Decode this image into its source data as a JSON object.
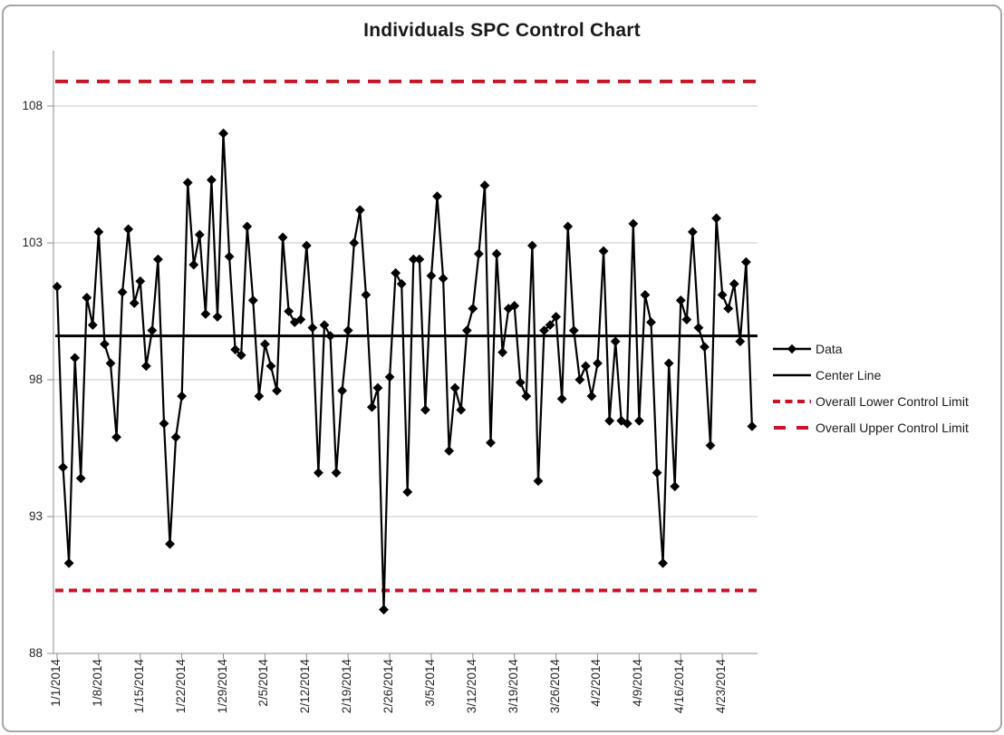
{
  "title": "Individuals SPC Control Chart",
  "colors": {
    "data_series": "#000000",
    "center_line": "#000000",
    "control_limit_red": "#C81428",
    "gridline": "#C9C9C9",
    "axis": "#8C8C8C",
    "frame_border": "#A6A6A6",
    "text": "#262626",
    "background": "#FFFFFF"
  },
  "legend": {
    "items": [
      {
        "label": "Data",
        "swatch": "line-diamond"
      },
      {
        "label": "Center Line",
        "swatch": "line"
      },
      {
        "label": "Overall Lower Control Limit",
        "swatch": "dash-short"
      },
      {
        "label": "Overall Upper Control Limit",
        "swatch": "dash-long"
      }
    ]
  },
  "chart_data": {
    "type": "line",
    "title": "Individuals SPC Control Chart",
    "xlabel": "",
    "ylabel": "",
    "x_start": "1/1/2014",
    "x_interval_days": 1,
    "x_tick_every": 7,
    "x_tick_labels": [
      "1/1/2014",
      "1/8/2014",
      "1/15/2014",
      "1/22/2014",
      "1/29/2014",
      "2/5/2014",
      "2/12/2014",
      "2/19/2014",
      "2/26/2014",
      "3/5/2014",
      "3/12/2014",
      "3/19/2014",
      "3/26/2014",
      "4/2/2014",
      "4/9/2014",
      "4/16/2014",
      "4/23/2014"
    ],
    "ytick_labels": [
      "108",
      "103",
      "98",
      "93",
      "88"
    ],
    "ylim": [
      88,
      110
    ],
    "grid": "horizontal",
    "legend_position": "right",
    "series": [
      {
        "name": "Data",
        "marker": "diamond",
        "color": "#000000",
        "values": [
          101.4,
          94.8,
          91.3,
          98.8,
          94.4,
          101.0,
          100.0,
          103.4,
          99.3,
          98.6,
          95.9,
          101.2,
          103.5,
          100.8,
          101.6,
          98.5,
          99.8,
          102.4,
          96.4,
          92.0,
          95.9,
          97.4,
          105.2,
          102.2,
          103.3,
          100.4,
          105.3,
          100.3,
          107.0,
          102.5,
          99.1,
          98.9,
          103.6,
          100.9,
          97.4,
          99.3,
          98.5,
          97.6,
          103.2,
          100.5,
          100.1,
          100.2,
          102.9,
          99.9,
          94.6,
          100.0,
          99.6,
          94.6,
          97.6,
          99.8,
          103.0,
          104.2,
          101.1,
          97.0,
          97.7,
          89.6,
          98.1,
          101.9,
          101.5,
          93.9,
          102.4,
          102.4,
          96.9,
          101.8,
          104.7,
          101.7,
          95.4,
          97.7,
          96.9,
          99.8,
          100.6,
          102.6,
          105.1,
          95.7,
          102.6,
          99.0,
          100.6,
          100.7,
          97.9,
          97.4,
          102.9,
          94.3,
          99.8,
          100.0,
          100.3,
          97.3,
          103.6,
          99.8,
          98.0,
          98.5,
          97.4,
          98.6,
          102.7,
          96.5,
          99.4,
          96.5,
          96.4,
          103.7,
          96.5,
          101.1,
          100.1,
          94.6,
          91.3,
          98.6,
          94.1,
          100.9,
          100.2,
          103.4,
          99.9,
          99.2,
          95.6,
          103.9,
          101.1,
          100.6,
          101.5,
          99.4,
          102.3,
          96.3
        ]
      }
    ],
    "center_line": {
      "name": "Center Line",
      "value": 99.6,
      "color": "#000000",
      "style": "solid"
    },
    "lower_control_limit": {
      "name": "Overall Lower Control Limit",
      "value": 90.3,
      "color": "#C81428",
      "style": "dash-short"
    },
    "upper_control_limit": {
      "name": "Overall Upper Control Limit",
      "value": 108.9,
      "color": "#C81428",
      "style": "dash-long"
    }
  }
}
